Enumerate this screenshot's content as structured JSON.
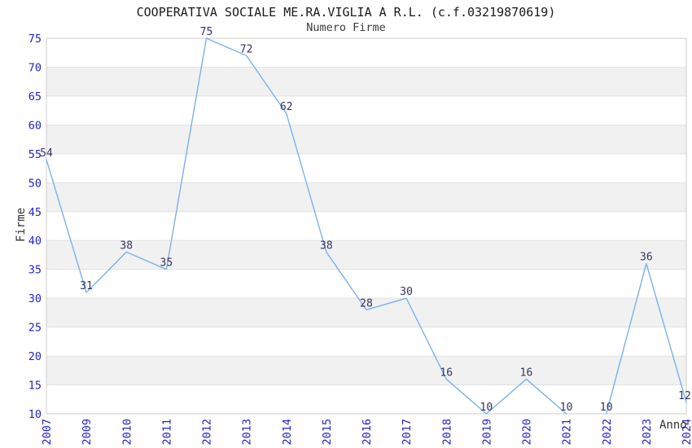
{
  "header": {
    "title": "COOPERATIVA SOCIALE ME.RA.VIGLIA A R.L. (c.f.03219870619)",
    "subtitle": "Numero Firme"
  },
  "chart_data": {
    "type": "line",
    "title": "COOPERATIVA SOCIALE ME.RA.VIGLIA A R.L. (c.f.03219870619)",
    "subtitle": "Numero Firme",
    "xlabel": "Anno",
    "ylabel": "Firme",
    "categories": [
      "2007",
      "2009",
      "2010",
      "2011",
      "2012",
      "2013",
      "2014",
      "2015",
      "2016",
      "2017",
      "2018",
      "2019",
      "2020",
      "2021",
      "2022",
      "2023",
      "2024"
    ],
    "values": [
      54,
      31,
      38,
      35,
      75,
      72,
      62,
      38,
      28,
      30,
      16,
      10,
      16,
      10,
      10,
      36,
      12
    ],
    "segments": [
      [
        0,
        13
      ],
      [
        14,
        16
      ]
    ],
    "ylim": [
      10,
      75
    ],
    "ytick_step": 5,
    "yticks": [
      10,
      15,
      20,
      25,
      30,
      35,
      40,
      45,
      50,
      55,
      60,
      65,
      70,
      75
    ],
    "grid": true,
    "band_intervals": [
      [
        65,
        70
      ],
      [
        55,
        60
      ],
      [
        45,
        50
      ],
      [
        35,
        40
      ],
      [
        25,
        30
      ],
      [
        15,
        20
      ]
    ],
    "legend": "none",
    "colors": {
      "line": "#7cb1ea",
      "tick_label": "#2323cc",
      "data_label": "#333366",
      "grid_line": "#e2e2e2",
      "band_fill": "#f1f1f1",
      "plot_border": "#cccccc",
      "background": "#ffffff"
    }
  }
}
